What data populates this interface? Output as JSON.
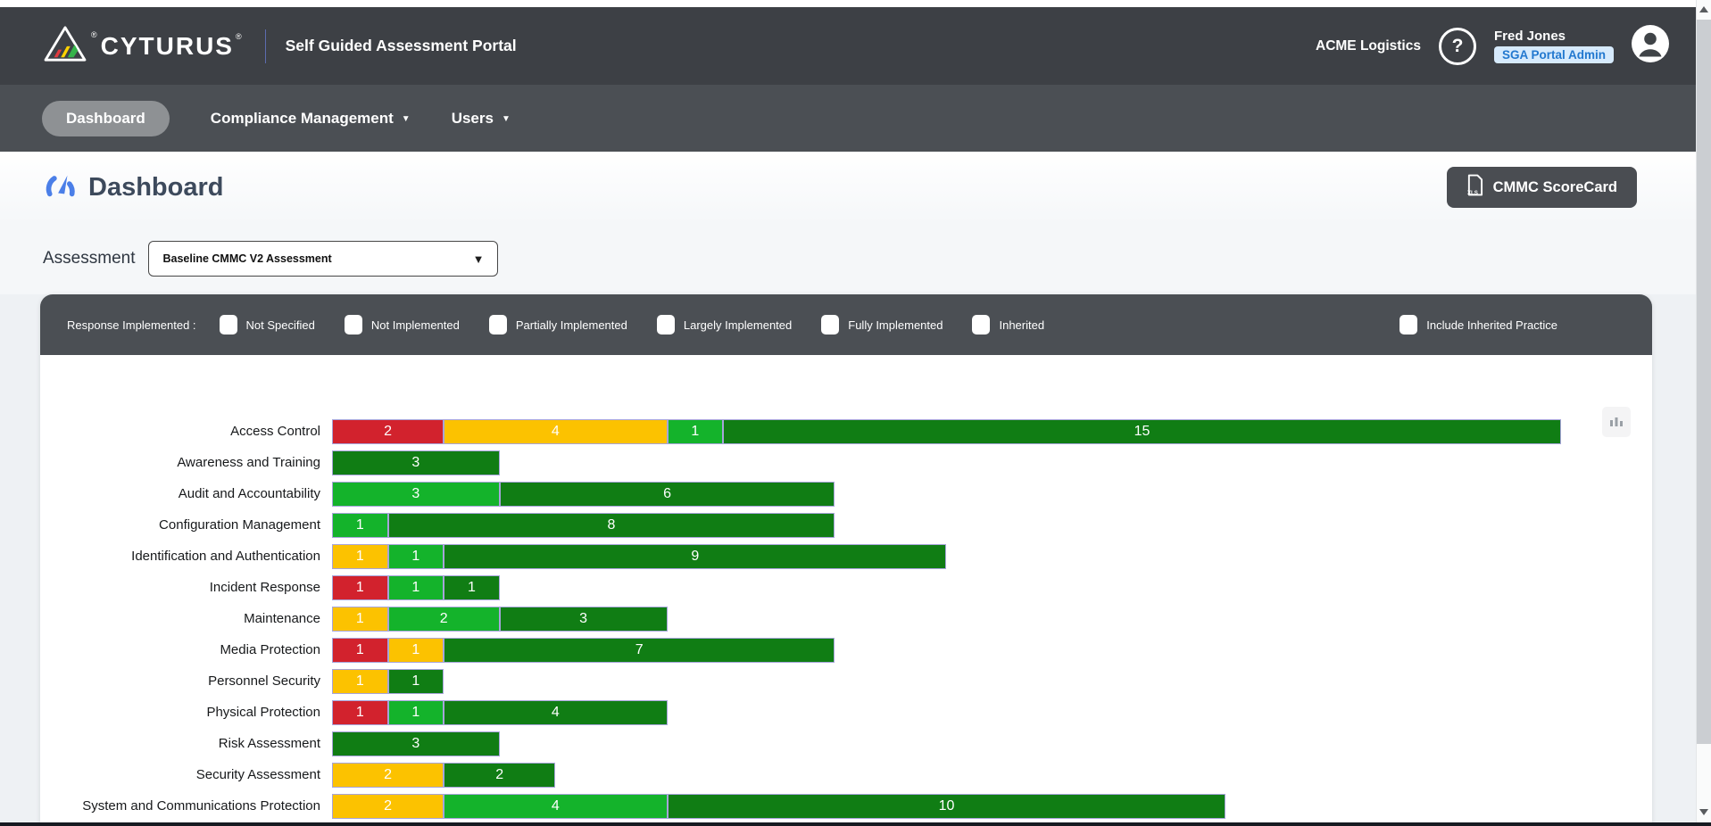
{
  "header": {
    "brand": "CYTURUS",
    "registered_mark": "®",
    "portal_title": "Self Guided Assessment Portal",
    "company_name": "ACME Logistics",
    "help_glyph": "?",
    "user_name": "Fred Jones",
    "user_role_badge": "SGA Portal Admin"
  },
  "nav": {
    "dashboard": "Dashboard",
    "compliance": "Compliance Management",
    "users": "Users"
  },
  "page": {
    "title": "Dashboard",
    "scorecard_button": "CMMC ScoreCard",
    "scorecard_icon_label": "XLS",
    "assessment_label": "Assessment",
    "assessment_selected": "Baseline CMMC V2 Assessment"
  },
  "filter_bar": {
    "label": "Response Implemented :",
    "checkboxes": [
      "Not Specified",
      "Not Implemented",
      "Partially Implemented",
      "Largely Implemented",
      "Fully Implemented",
      "Inherited"
    ],
    "checkbox_states": [
      false,
      false,
      false,
      false,
      false,
      false
    ],
    "right_checkbox": "Include Inherited Practice",
    "right_checkbox_state": false
  },
  "colors": {
    "header_dark": "#3d4045",
    "nav_dark": "#4b4f54",
    "badge_bg": "#d6eafc",
    "badge_text": "#2278cf",
    "accent_blue": "#4b7fe8",
    "bar_red": "#d2222d",
    "bar_amber": "#fcc200",
    "bar_green": "#14b32b",
    "bar_dark_green": "#107d14",
    "bar_border": "#a7a4da"
  },
  "chart_data": {
    "type": "bar",
    "orientation": "horizontal",
    "stacked": true,
    "axis_labels_visible": false,
    "grid": false,
    "legend_position": "none",
    "x_axis_max_units": 22,
    "rows": [
      {
        "label": "Access Control",
        "segments": [
          {
            "value": 2,
            "color": "#d2222d"
          },
          {
            "value": 4,
            "color": "#fcc200"
          },
          {
            "value": 1,
            "color": "#14b32b"
          },
          {
            "value": 15,
            "color": "#107d14"
          }
        ]
      },
      {
        "label": "Awareness and Training",
        "segments": [
          {
            "value": 3,
            "color": "#107d14"
          }
        ]
      },
      {
        "label": "Audit and Accountability",
        "segments": [
          {
            "value": 3,
            "color": "#14b32b"
          },
          {
            "value": 6,
            "color": "#107d14"
          }
        ]
      },
      {
        "label": "Configuration Management",
        "segments": [
          {
            "value": 1,
            "color": "#14b32b"
          },
          {
            "value": 8,
            "color": "#107d14"
          }
        ]
      },
      {
        "label": "Identification and Authentication",
        "segments": [
          {
            "value": 1,
            "color": "#fcc200"
          },
          {
            "value": 1,
            "color": "#14b32b"
          },
          {
            "value": 9,
            "color": "#107d14"
          }
        ]
      },
      {
        "label": "Incident Response",
        "segments": [
          {
            "value": 1,
            "color": "#d2222d"
          },
          {
            "value": 1,
            "color": "#14b32b"
          },
          {
            "value": 1,
            "color": "#107d14"
          }
        ]
      },
      {
        "label": "Maintenance",
        "segments": [
          {
            "value": 1,
            "color": "#fcc200"
          },
          {
            "value": 2,
            "color": "#14b32b"
          },
          {
            "value": 3,
            "color": "#107d14"
          }
        ]
      },
      {
        "label": "Media Protection",
        "segments": [
          {
            "value": 1,
            "color": "#d2222d"
          },
          {
            "value": 1,
            "color": "#fcc200"
          },
          {
            "value": 7,
            "color": "#107d14"
          }
        ]
      },
      {
        "label": "Personnel Security",
        "segments": [
          {
            "value": 1,
            "color": "#fcc200"
          },
          {
            "value": 1,
            "color": "#107d14"
          }
        ]
      },
      {
        "label": "Physical Protection",
        "segments": [
          {
            "value": 1,
            "color": "#d2222d"
          },
          {
            "value": 1,
            "color": "#14b32b"
          },
          {
            "value": 4,
            "color": "#107d14"
          }
        ]
      },
      {
        "label": "Risk Assessment",
        "segments": [
          {
            "value": 3,
            "color": "#107d14"
          }
        ]
      },
      {
        "label": "Security Assessment",
        "segments": [
          {
            "value": 2,
            "color": "#fcc200"
          },
          {
            "value": 2,
            "color": "#107d14"
          }
        ]
      },
      {
        "label": "System and Communications Protection",
        "segments": [
          {
            "value": 2,
            "color": "#fcc200"
          },
          {
            "value": 4,
            "color": "#14b32b"
          },
          {
            "value": 10,
            "color": "#107d14"
          }
        ]
      }
    ],
    "partial_next_row": {
      "visible": true,
      "width_units": 8.9
    }
  }
}
